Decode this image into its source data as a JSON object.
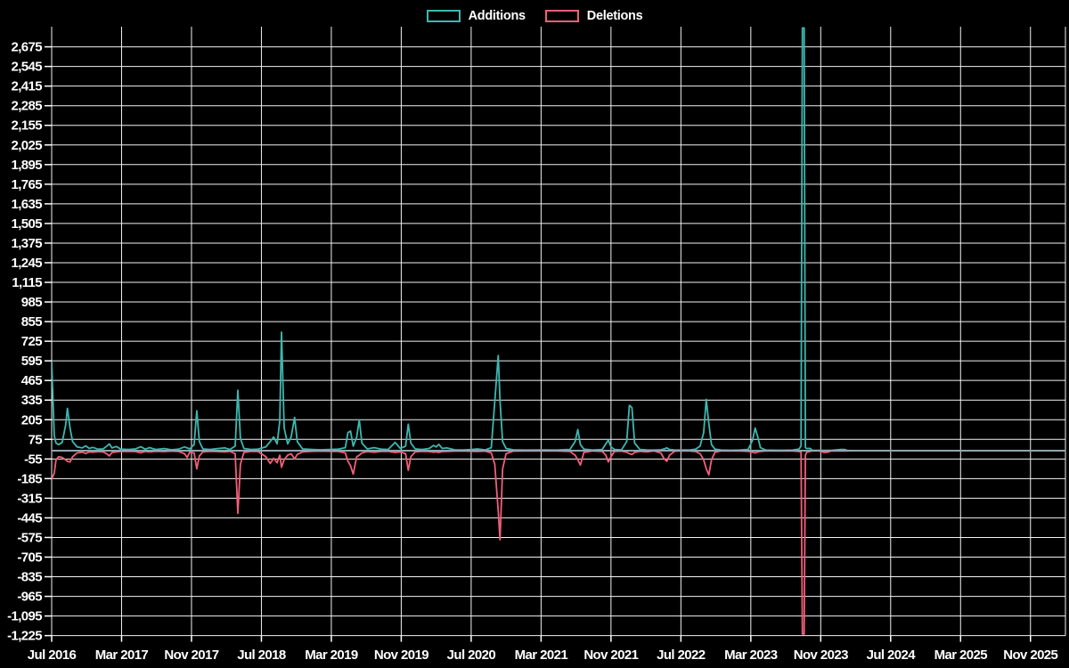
{
  "legend": {
    "items": [
      {
        "label": "Additions",
        "color": "#3cb8b0"
      },
      {
        "label": "Deletions",
        "color": "#f25f78"
      }
    ]
  },
  "chart_data": {
    "type": "line",
    "title": "",
    "xlabel": "",
    "ylabel": "",
    "background": "#000000",
    "grid_color": "#f2f2f2",
    "zero_line_color": "#8fa6b3",
    "legend_position": "top-center",
    "x_axis": {
      "tick_labels": [
        "Jul 2016",
        "Mar 2017",
        "Nov 2017",
        "Jul 2018",
        "Mar 2019",
        "Nov 2019",
        "Jul 2020",
        "Mar 2021",
        "Nov 2021",
        "Jul 2022",
        "Mar 2023",
        "Nov 2023",
        "Jul 2024",
        "Mar 2025",
        "Nov 2025"
      ],
      "tick_months": [
        0,
        8,
        16,
        24,
        32,
        40,
        48,
        56,
        64,
        72,
        80,
        88,
        96,
        104,
        112
      ],
      "span_months": 116,
      "start_label": "Jul 2016"
    },
    "y_axis": {
      "min": -1225,
      "max": 2675,
      "step": 130,
      "ylim": [
        -1225,
        2800
      ]
    },
    "series": [
      {
        "name": "Additions",
        "color": "#3cb8b0"
      },
      {
        "name": "Deletions",
        "color": "#f25f78"
      }
    ],
    "points_format": [
      "months_since_jul_2016",
      "additions",
      "deletions"
    ],
    "points": [
      [
        0,
        595,
        -190
      ],
      [
        0.3,
        100,
        -150
      ],
      [
        0.5,
        50,
        -60
      ],
      [
        0.8,
        40,
        -40
      ],
      [
        1.2,
        55,
        -45
      ],
      [
        1.6,
        170,
        -60
      ],
      [
        1.8,
        280,
        -70
      ],
      [
        2.1,
        150,
        -75
      ],
      [
        2.4,
        60,
        -40
      ],
      [
        2.9,
        25,
        -15
      ],
      [
        3.5,
        18,
        -10
      ],
      [
        3.9,
        32,
        -18
      ],
      [
        4.3,
        15,
        -8
      ],
      [
        4.7,
        22,
        -10
      ],
      [
        5.3,
        10,
        -6
      ],
      [
        5.9,
        12,
        -8
      ],
      [
        6.3,
        30,
        -20
      ],
      [
        6.6,
        45,
        -35
      ],
      [
        6.9,
        18,
        -12
      ],
      [
        7.4,
        28,
        -8
      ],
      [
        7.9,
        10,
        -5
      ],
      [
        8.8,
        8,
        -4
      ],
      [
        9.6,
        12,
        -6
      ],
      [
        10.2,
        26,
        -14
      ],
      [
        10.7,
        10,
        -5
      ],
      [
        11.2,
        20,
        -8
      ],
      [
        11.9,
        8,
        -4
      ],
      [
        12.9,
        14,
        -6
      ],
      [
        13.7,
        6,
        -3
      ],
      [
        14.5,
        10,
        -5
      ],
      [
        15.2,
        25,
        -20
      ],
      [
        15.5,
        18,
        -45
      ],
      [
        15.8,
        12,
        -10
      ],
      [
        16.3,
        40,
        -15
      ],
      [
        16.6,
        265,
        -120
      ],
      [
        16.9,
        60,
        -35
      ],
      [
        17.3,
        12,
        -8
      ],
      [
        18.1,
        8,
        -4
      ],
      [
        19,
        14,
        -6
      ],
      [
        19.8,
        18,
        -8
      ],
      [
        20.4,
        8,
        -4
      ],
      [
        21,
        30,
        -20
      ],
      [
        21.3,
        400,
        -415
      ],
      [
        21.6,
        80,
        -90
      ],
      [
        22,
        15,
        -12
      ],
      [
        22.8,
        8,
        -4
      ],
      [
        23.6,
        10,
        -5
      ],
      [
        24.5,
        25,
        -40
      ],
      [
        25,
        60,
        -85
      ],
      [
        25.4,
        90,
        -50
      ],
      [
        25.8,
        45,
        -80
      ],
      [
        26.1,
        200,
        -30
      ],
      [
        26.3,
        785,
        -110
      ],
      [
        26.6,
        150,
        -60
      ],
      [
        27,
        45,
        -30
      ],
      [
        27.4,
        90,
        -20
      ],
      [
        27.8,
        220,
        -55
      ],
      [
        28.1,
        60,
        -25
      ],
      [
        28.7,
        12,
        -8
      ],
      [
        29.8,
        8,
        -4
      ],
      [
        30.8,
        6,
        -3
      ],
      [
        31.8,
        8,
        -4
      ],
      [
        32.8,
        10,
        -5
      ],
      [
        33.6,
        20,
        -15
      ],
      [
        33.9,
        120,
        -70
      ],
      [
        34.2,
        130,
        -100
      ],
      [
        34.5,
        30,
        -155
      ],
      [
        34.9,
        90,
        -40
      ],
      [
        35.2,
        205,
        -30
      ],
      [
        35.5,
        50,
        -15
      ],
      [
        36.1,
        12,
        -6
      ],
      [
        36.9,
        20,
        -10
      ],
      [
        37.7,
        10,
        -5
      ],
      [
        38.5,
        8,
        -4
      ],
      [
        39.3,
        55,
        -12
      ],
      [
        39.9,
        15,
        -8
      ],
      [
        40.5,
        30,
        -20
      ],
      [
        40.8,
        175,
        -130
      ],
      [
        41.1,
        50,
        -40
      ],
      [
        41.6,
        12,
        -8
      ],
      [
        42.4,
        8,
        -4
      ],
      [
        43.2,
        15,
        -6
      ],
      [
        43.7,
        35,
        -10
      ],
      [
        44,
        25,
        -8
      ],
      [
        44.3,
        42,
        -12
      ],
      [
        44.7,
        15,
        -6
      ],
      [
        45.2,
        18,
        -5
      ],
      [
        46.1,
        6,
        -3
      ],
      [
        47.1,
        5,
        -2
      ],
      [
        48.1,
        8,
        -4
      ],
      [
        48.7,
        12,
        -5
      ],
      [
        49.6,
        5,
        -3
      ],
      [
        50.3,
        20,
        -15
      ],
      [
        50.7,
        325,
        -90
      ],
      [
        51.1,
        630,
        -400
      ],
      [
        51.3,
        330,
        -590
      ],
      [
        51.6,
        60,
        -120
      ],
      [
        52,
        15,
        -20
      ],
      [
        52.8,
        6,
        -3
      ],
      [
        54.2,
        4,
        -2
      ],
      [
        56.3,
        5,
        -2
      ],
      [
        57.8,
        4,
        -2
      ],
      [
        59.3,
        8,
        -5
      ],
      [
        59.9,
        60,
        -30
      ],
      [
        60.2,
        140,
        -60
      ],
      [
        60.5,
        40,
        -95
      ],
      [
        60.9,
        10,
        -12
      ],
      [
        61.9,
        4,
        -2
      ],
      [
        63,
        8,
        -5
      ],
      [
        63.4,
        45,
        -30
      ],
      [
        63.7,
        70,
        -75
      ],
      [
        64,
        25,
        -40
      ],
      [
        64.4,
        8,
        -5
      ],
      [
        65.2,
        5,
        -3
      ],
      [
        65.8,
        60,
        -10
      ],
      [
        66.1,
        300,
        -20
      ],
      [
        66.4,
        285,
        -25
      ],
      [
        66.7,
        50,
        -12
      ],
      [
        67.3,
        8,
        -4
      ],
      [
        68.1,
        5,
        -8
      ],
      [
        68.9,
        4,
        -2
      ],
      [
        69.7,
        6,
        -15
      ],
      [
        70.1,
        12,
        -55
      ],
      [
        70.4,
        18,
        -70
      ],
      [
        70.7,
        8,
        -30
      ],
      [
        71.3,
        4,
        -3
      ],
      [
        72.2,
        5,
        -2
      ],
      [
        73,
        4,
        -2
      ],
      [
        73.7,
        10,
        -6
      ],
      [
        74.2,
        30,
        -20
      ],
      [
        74.6,
        120,
        -60
      ],
      [
        74.9,
        340,
        -120
      ],
      [
        75.2,
        180,
        -160
      ],
      [
        75.5,
        40,
        -60
      ],
      [
        75.9,
        10,
        -10
      ],
      [
        76.6,
        4,
        -2
      ],
      [
        77.7,
        3,
        -2
      ],
      [
        78.7,
        4,
        -2
      ],
      [
        79.7,
        8,
        -4
      ],
      [
        80.2,
        70,
        -10
      ],
      [
        80.5,
        150,
        -15
      ],
      [
        80.8,
        90,
        -8
      ],
      [
        81.1,
        20,
        -5
      ],
      [
        81.7,
        4,
        -2
      ],
      [
        82.8,
        3,
        -2
      ],
      [
        83.8,
        3,
        -2
      ],
      [
        84.8,
        4,
        -2
      ],
      [
        85.5,
        10,
        -5
      ],
      [
        85.75,
        30,
        -10
      ],
      [
        85.9,
        2800,
        -1215
      ],
      [
        86.1,
        2800,
        -1215
      ],
      [
        86.25,
        20,
        -30
      ],
      [
        86.4,
        15,
        -10
      ],
      [
        86.8,
        15,
        -4
      ],
      [
        87,
        3,
        -2
      ],
      [
        87.8,
        2,
        -1
      ],
      [
        88.4,
        2,
        -12
      ],
      [
        88.8,
        2,
        -10
      ],
      [
        89.2,
        2,
        -2
      ],
      [
        90.3,
        8,
        -2
      ],
      [
        90.7,
        8,
        -2
      ],
      [
        91.1,
        1,
        -1
      ],
      [
        93,
        0,
        0
      ],
      [
        96,
        0,
        0
      ],
      [
        116,
        0,
        0
      ]
    ]
  }
}
